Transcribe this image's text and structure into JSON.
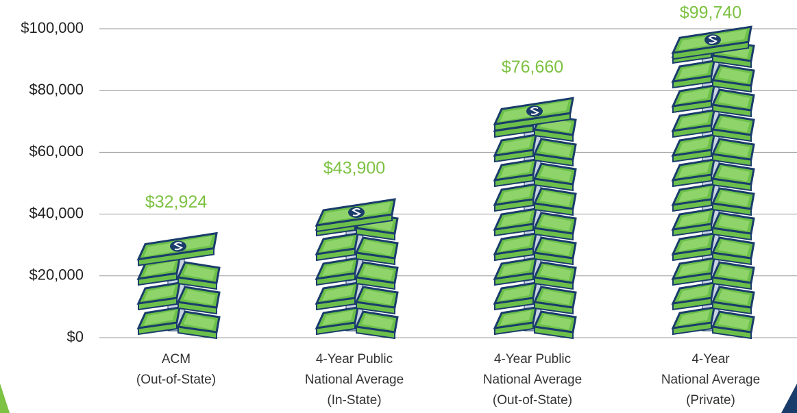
{
  "chart_data": {
    "type": "money-stack",
    "categories": [
      [
        "ACM",
        "(Out-of-State)"
      ],
      [
        "4-Year Public",
        "National Average",
        "(In-State)"
      ],
      [
        "4-Year Public",
        "National Average",
        "(Out-of-State)"
      ],
      [
        "4-Year",
        "National Average",
        "(Private)"
      ]
    ],
    "values": [
      32924,
      43900,
      76660,
      99740
    ],
    "value_labels": [
      "$32,924",
      "$43,900",
      "$76,660",
      "$99,740"
    ],
    "color": "#6cc04a",
    "ylim": [
      0,
      100000
    ],
    "yticks": [
      {
        "value": 0,
        "label": "$0"
      },
      {
        "value": 20000,
        "label": "$20,000"
      },
      {
        "value": 40000,
        "label": "$40,000"
      },
      {
        "value": 60000,
        "label": "$60,000"
      },
      {
        "value": 80000,
        "label": "$80,000"
      },
      {
        "value": 100000,
        "label": "$100,000"
      }
    ],
    "grid": true
  }
}
